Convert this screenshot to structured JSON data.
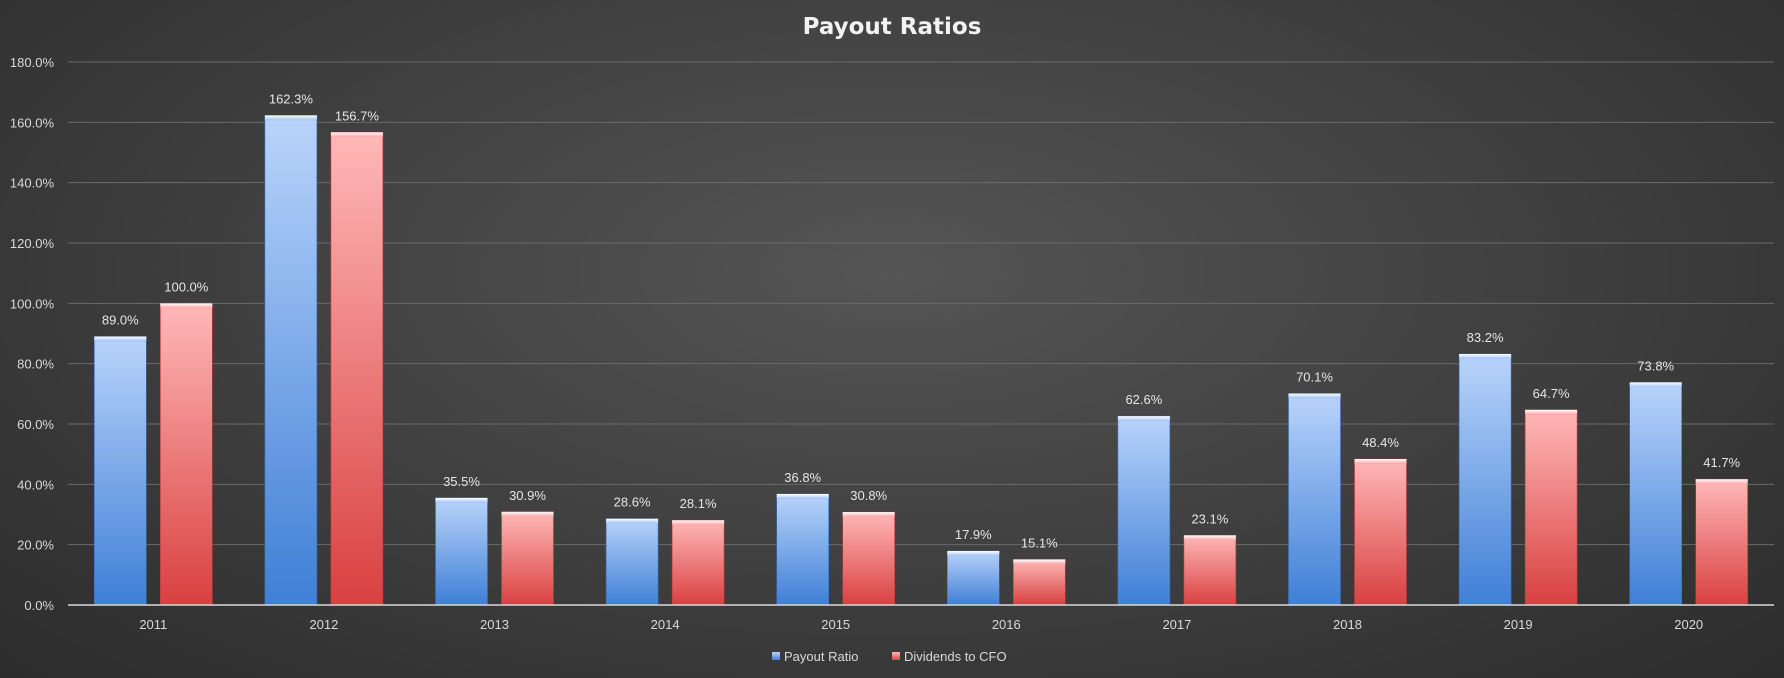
{
  "chart_data": {
    "type": "bar",
    "title": "Payout Ratios",
    "xlabel": "",
    "ylabel": "",
    "categories": [
      "2011",
      "2012",
      "2013",
      "2014",
      "2015",
      "2016",
      "2017",
      "2018",
      "2019",
      "2020"
    ],
    "series": [
      {
        "name": "Payout Ratio",
        "values": [
          89.0,
          162.3,
          35.5,
          28.6,
          36.8,
          17.9,
          62.6,
          70.1,
          83.2,
          73.8
        ]
      },
      {
        "name": "Dividends to CFO",
        "values": [
          100.0,
          156.7,
          30.9,
          28.1,
          30.8,
          15.1,
          23.1,
          48.4,
          64.7,
          41.7
        ]
      }
    ],
    "ylim": [
      0,
      180
    ],
    "y_ticks": [
      0,
      20,
      40,
      60,
      80,
      100,
      120,
      140,
      160,
      180
    ],
    "value_format": "percent_1dp",
    "grid": true,
    "legend_position": "bottom",
    "colors": {
      "Payout Ratio": "#6fa3ea",
      "Dividends to CFO": "#f07575"
    }
  }
}
